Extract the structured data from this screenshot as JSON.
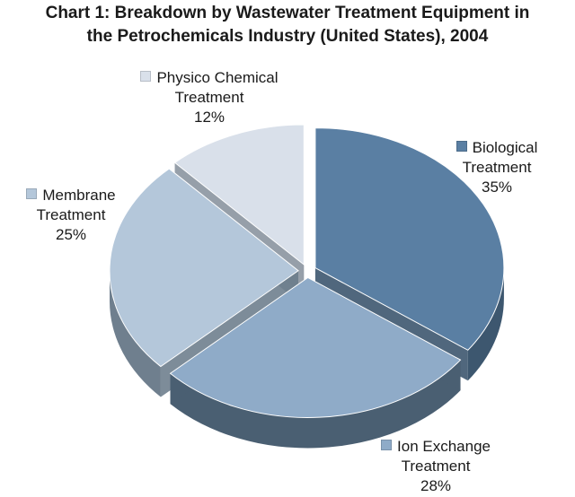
{
  "chart_data": {
    "type": "pie",
    "title_line1": "Chart 1: Breakdown by Wastewater Treatment Equipment in",
    "title_line2": "the Petrochemicals Industry (United States), 2004",
    "slices": [
      {
        "key": "biological",
        "line1": "Biological",
        "line2": "Treatment",
        "value": 35,
        "pct": "35%",
        "color": "#5a7fa3",
        "side": "#3d576f"
      },
      {
        "key": "ion",
        "line1": "Ion Exchange",
        "line2": "Treatment",
        "value": 28,
        "pct": "28%",
        "color": "#8fabc8",
        "side": "#4a5f72"
      },
      {
        "key": "membrane",
        "line1": "Membrane",
        "line2": "Treatment",
        "value": 25,
        "pct": "25%",
        "color": "#b4c7da",
        "side": "#6f7f8e"
      },
      {
        "key": "physico",
        "line1": "Physico Chemical",
        "line2": "Treatment",
        "value": 12,
        "pct": "12%",
        "color": "#d9e0ea",
        "side": "#8b95a0"
      }
    ]
  }
}
